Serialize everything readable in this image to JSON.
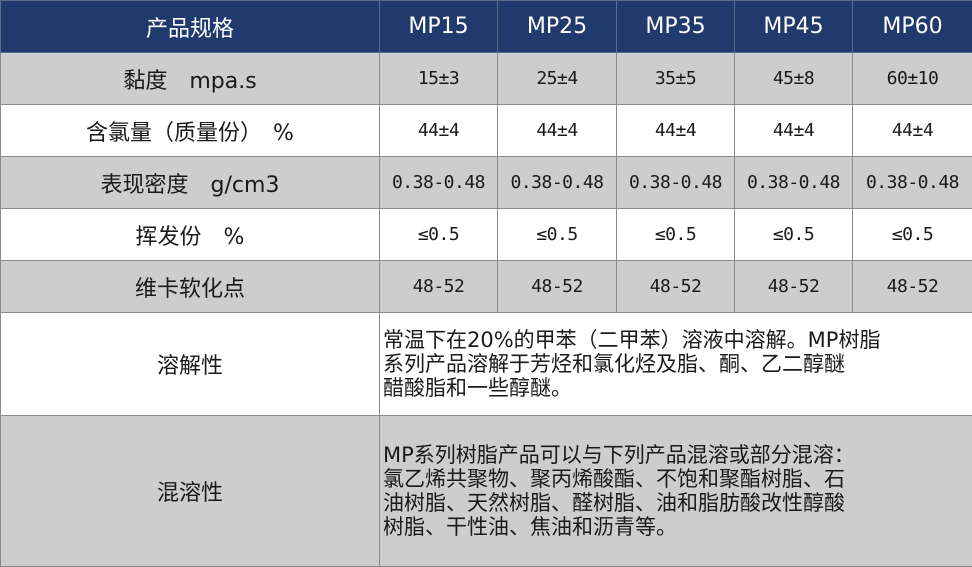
{
  "colors": {
    "header_bg": "#213a6d",
    "header_text": "#ffffff",
    "row_gray": "#cdcdcd",
    "row_white": "#ffffff",
    "border": "#8a8a8a"
  },
  "header": {
    "label": "产品规格",
    "models": [
      "MP15",
      "MP25",
      "MP35",
      "MP45",
      "MP60"
    ]
  },
  "rows": [
    {
      "label": "黏度　mpa.s",
      "values": [
        "15±3",
        "25±4",
        "35±5",
        "45±8",
        "60±10"
      ]
    },
    {
      "label": "含氯量（质量份）　%",
      "values": [
        "44±4",
        "44±4",
        "44±4",
        "44±4",
        "44±4"
      ]
    },
    {
      "label": "表现密度　g/cm3",
      "values": [
        "0.38-0.48",
        "0.38-0.48",
        "0.38-0.48",
        "0.38-0.48",
        "0.38-0.48"
      ]
    },
    {
      "label": "挥发份　%",
      "values": [
        "≤0.5",
        "≤0.5",
        "≤0.5",
        "≤0.5",
        "≤0.5"
      ]
    },
    {
      "label": "维卡软化点",
      "values": [
        "48-52",
        "48-52",
        "48-52",
        "48-52",
        "48-52"
      ]
    }
  ],
  "solubility": {
    "label": "溶解性",
    "lines": [
      "常温下在20%的甲苯（二甲苯）溶液中溶解。MP树脂",
      "系列产品溶解于芳烃和氯化烃及脂、酮、乙二醇醚",
      "醋酸脂和一些醇醚。"
    ]
  },
  "compatibility": {
    "label": "混溶性",
    "lines": [
      "MP系列树脂产品可以与下列产品混溶或部分混溶：",
      "氯乙烯共聚物、聚丙烯酸酯、不饱和聚酯树脂、石",
      "油树脂、天然树脂、醛树脂、油和脂肪酸改性醇酸",
      "树脂、干性油、焦油和沥青等。"
    ]
  }
}
